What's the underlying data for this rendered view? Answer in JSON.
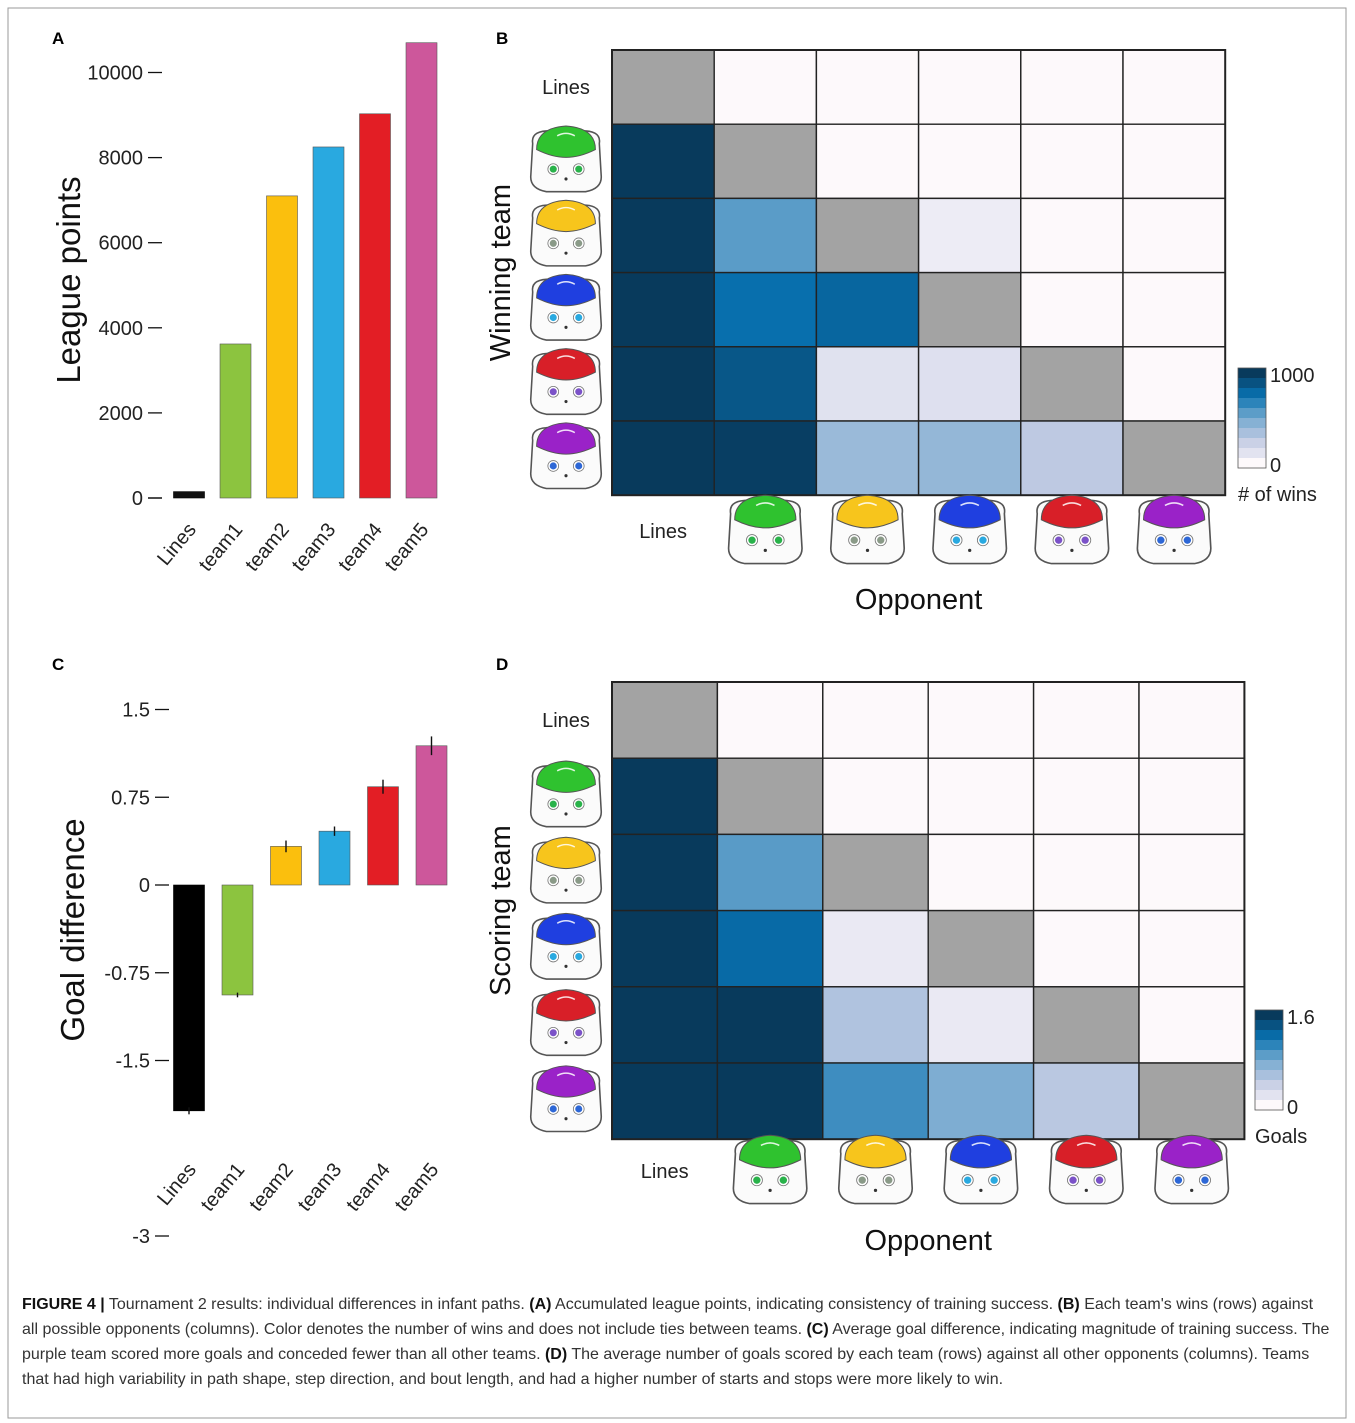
{
  "chart_data": [
    {
      "panel": "A",
      "type": "bar",
      "ylabel": "League points",
      "categories": [
        "Lines",
        "team1",
        "team2",
        "team3",
        "team4",
        "team5"
      ],
      "values": [
        150,
        3620,
        7100,
        8250,
        9030,
        10700
      ],
      "colors": [
        "#111111",
        "#8cc43f",
        "#fbbf0d",
        "#29a9e0",
        "#e31e25",
        "#cd579b"
      ],
      "yticks": [
        0,
        2000,
        4000,
        6000,
        8000,
        10000
      ],
      "ylim": [
        0,
        11000
      ],
      "grid": false
    },
    {
      "panel": "B",
      "type": "heatmap",
      "ylabel": "Winning team",
      "xlabel": "Opponent",
      "row_labels": [
        "Lines",
        "team1",
        "team2",
        "team3",
        "team4",
        "team5"
      ],
      "col_labels": [
        "Lines",
        "team1",
        "team2",
        "team3",
        "team4",
        "team5"
      ],
      "values": [
        [
          null,
          0,
          0,
          0,
          0,
          0
        ],
        [
          1000,
          null,
          0,
          0,
          0,
          0
        ],
        [
          1000,
          560,
          null,
          60,
          0,
          0
        ],
        [
          1000,
          760,
          800,
          null,
          0,
          0
        ],
        [
          1000,
          870,
          120,
          130,
          null,
          0
        ],
        [
          1000,
          980,
          380,
          400,
          270,
          null
        ]
      ],
      "colorbar": {
        "max_label": "1000",
        "min_label": "0",
        "title": "# of wins",
        "min": 0,
        "max": 1000
      }
    },
    {
      "panel": "C",
      "type": "bar",
      "ylabel": "Goal difference",
      "categories": [
        "Lines",
        "team1",
        "team2",
        "team3",
        "team4",
        "team5"
      ],
      "values": [
        -1.93,
        -0.94,
        0.33,
        0.46,
        0.84,
        1.19
      ],
      "errors": [
        0.03,
        0.02,
        0.05,
        0.04,
        0.06,
        0.08
      ],
      "colors": [
        "#000000",
        "#8cc43f",
        "#fbbf0d",
        "#29a9e0",
        "#e31e25",
        "#cd579b"
      ],
      "ytick_values": [
        1.5,
        0.75,
        0,
        -0.75,
        -1.5,
        -3
      ],
      "ytick_labels": [
        "1.5",
        "0.75",
        "0",
        "-0.75",
        "-1.5",
        "-3"
      ],
      "grid": false
    },
    {
      "panel": "D",
      "type": "heatmap",
      "ylabel": "Scoring team",
      "xlabel": "Opponent",
      "row_labels": [
        "Lines",
        "team1",
        "team2",
        "team3",
        "team4",
        "team5"
      ],
      "col_labels": [
        "Lines",
        "team1",
        "team2",
        "team3",
        "team4",
        "team5"
      ],
      "values": [
        [
          null,
          0,
          0,
          0,
          0,
          0
        ],
        [
          1.6,
          null,
          0,
          0,
          0,
          0
        ],
        [
          1.6,
          0.9,
          null,
          0,
          0,
          0
        ],
        [
          1.6,
          1.25,
          0.12,
          null,
          0,
          0
        ],
        [
          1.6,
          1.6,
          0.5,
          0.12,
          null,
          0
        ],
        [
          1.6,
          1.6,
          1.0,
          0.75,
          0.45,
          null
        ]
      ],
      "colorbar": {
        "max_label": "1.6",
        "min_label": "0",
        "title": "Goals",
        "min": 0,
        "max": 1.6
      }
    }
  ],
  "team_colors": [
    "#2fc22f",
    "#f7c51c",
    "#1f3fe0",
    "#d81f28",
    "#9a22c8"
  ],
  "eye_colors": [
    "#29b24a",
    "#8a9a88",
    "#29a9e0",
    "#7b52c8",
    "#2d67d6"
  ],
  "panel_letters": [
    "A",
    "B",
    "C",
    "D"
  ],
  "caption": {
    "figure_label": "FIGURE 4 |",
    "text": " Tournament 2 results: individual differences in infant paths. ",
    "a_label": "(A)",
    "a_text": " Accumulated league points, indicating consistency of training success. ",
    "b_label": "(B)",
    "b_text": " Each team's wins (rows) against all possible opponents (columns). Color denotes the number of wins and does not include ties between teams. ",
    "c_label": "(C)",
    "c_text": " Average goal difference, indicating magnitude of training success. The purple team scored more goals and conceded fewer than all other teams. ",
    "d_label": "(D)",
    "d_text": " The average number of goals scored by each team (rows) against all other opponents (columns). Teams that had high variability in path shape, step direction, and bout length, and had a higher number of starts and stops were more likely to win."
  }
}
